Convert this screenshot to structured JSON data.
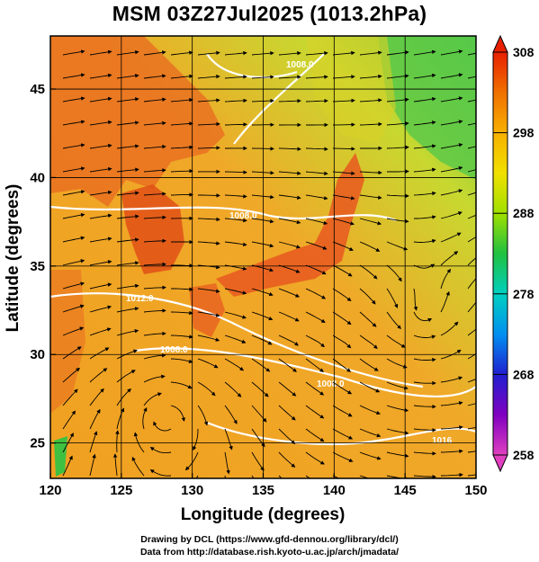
{
  "title": "MSM 03Z27Jul2025 (1013.2hPa)",
  "x_axis": {
    "label": "Longitude (degrees)",
    "min": 120,
    "max": 150,
    "ticks": [
      "120",
      "125",
      "130",
      "135",
      "140",
      "145",
      "150"
    ]
  },
  "y_axis": {
    "label": "Latitude  (degrees)",
    "min": 23,
    "max": 48,
    "ticks": [
      "25",
      "30",
      "35",
      "40",
      "45"
    ]
  },
  "colorbar": {
    "min": 258,
    "max": 308,
    "ticks": [
      "258",
      "268",
      "278",
      "288",
      "298",
      "308"
    ],
    "colors": [
      "#e040c0",
      "#8000c0",
      "#2020d0",
      "#0090f0",
      "#00d0c0",
      "#20c040",
      "#a0e000",
      "#f0e000",
      "#f8b000",
      "#f07000",
      "#e82000"
    ]
  },
  "contour_labels": [
    "1008.0",
    "1008.0",
    "1008.0",
    "1008.0",
    "1012.0",
    "1016"
  ],
  "colors": {
    "warm": "#f0a020",
    "hot": "#e85020",
    "mild": "#c8d830",
    "cool": "#40c040",
    "contour": "#ffffff",
    "streamline": "#000000"
  },
  "credits": {
    "line1": "Drawing by DCL (https://www.gfd-dennou.org/library/dcl/)",
    "line2": "Data from http://database.rish.kyoto-u.ac.jp/arch/jmadata/"
  }
}
